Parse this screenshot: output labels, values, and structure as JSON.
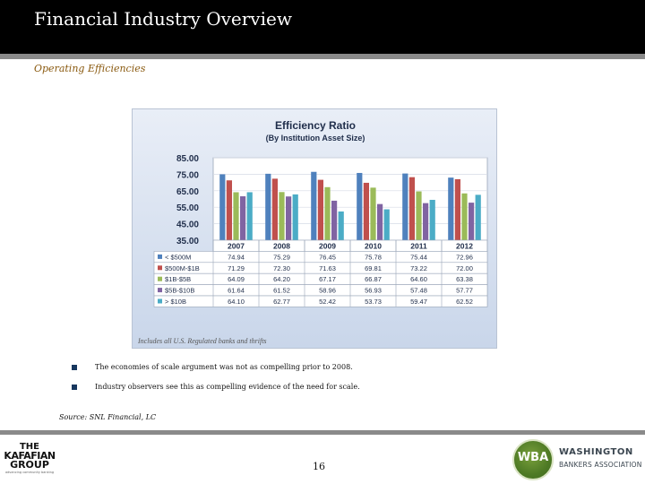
{
  "header": {
    "title": "Financial Industry Overview",
    "subtitle": "Operating Efficiencies"
  },
  "chart_data": {
    "type": "bar",
    "title": "Efficiency Ratio",
    "subtitle": "(By Institution Asset Size)",
    "categories": [
      "2007",
      "2008",
      "2009",
      "2010",
      "2011",
      "2012"
    ],
    "yticks": [
      "85.00",
      "75.00",
      "65.00",
      "55.00",
      "45.00",
      "35.00"
    ],
    "ylim": [
      35,
      85
    ],
    "grid": true,
    "legend": "table-below",
    "series": [
      {
        "name": "< $500M",
        "color": "#4f81bd",
        "values": [
          74.94,
          75.29,
          76.45,
          75.78,
          75.44,
          72.96
        ],
        "labels": [
          "74.94",
          "75.29",
          "76.45",
          "75.78",
          "75.44",
          "72.96"
        ]
      },
      {
        "name": "$500M-$1B",
        "color": "#c0504d",
        "values": [
          71.29,
          72.3,
          71.63,
          69.81,
          73.22,
          72.0
        ],
        "labels": [
          "71.29",
          "72.30",
          "71.63",
          "69.81",
          "73.22",
          "72.00"
        ]
      },
      {
        "name": "$1B-$5B",
        "color": "#9bbb59",
        "values": [
          64.09,
          64.2,
          67.17,
          66.87,
          64.6,
          63.38
        ],
        "labels": [
          "64.09",
          "64.20",
          "67.17",
          "66.87",
          "64.60",
          "63.38"
        ]
      },
      {
        "name": "$5B-$10B",
        "color": "#8064a2",
        "values": [
          61.64,
          61.52,
          58.96,
          56.93,
          57.48,
          57.77
        ],
        "labels": [
          "61.64",
          "61.52",
          "58.96",
          "56.93",
          "57.48",
          "57.77"
        ]
      },
      {
        "name": "> $10B",
        "color": "#4bacc6",
        "values": [
          64.1,
          62.77,
          52.42,
          53.73,
          59.47,
          62.52
        ],
        "labels": [
          "64.10",
          "62.77",
          "52.42",
          "53.73",
          "59.47",
          "62.52"
        ]
      }
    ],
    "footnote": "Includes all U.S. Regulated banks and thrifts"
  },
  "bullets": [
    "The economies of scale argument was not as compelling prior to 2008.",
    "Industry observers see this as compelling evidence of the need for scale."
  ],
  "source": "Source: SNL Financial, LC",
  "page_number": "16",
  "logos": {
    "left": {
      "line1": "THE",
      "line2": "KAFAFIAN",
      "line3": "GROUP",
      "tagline": "advancing community banking"
    },
    "right": {
      "mark": "WBA",
      "name1": "WASHINGTON",
      "name2": "BANKERS ASSOCIATION"
    }
  },
  "colors": {
    "header_bg": "#000000",
    "rule": "#8a8a8a",
    "subtitle": "#8a5a10",
    "bullet": "#17375e",
    "wba_green": "#4e7a25"
  }
}
